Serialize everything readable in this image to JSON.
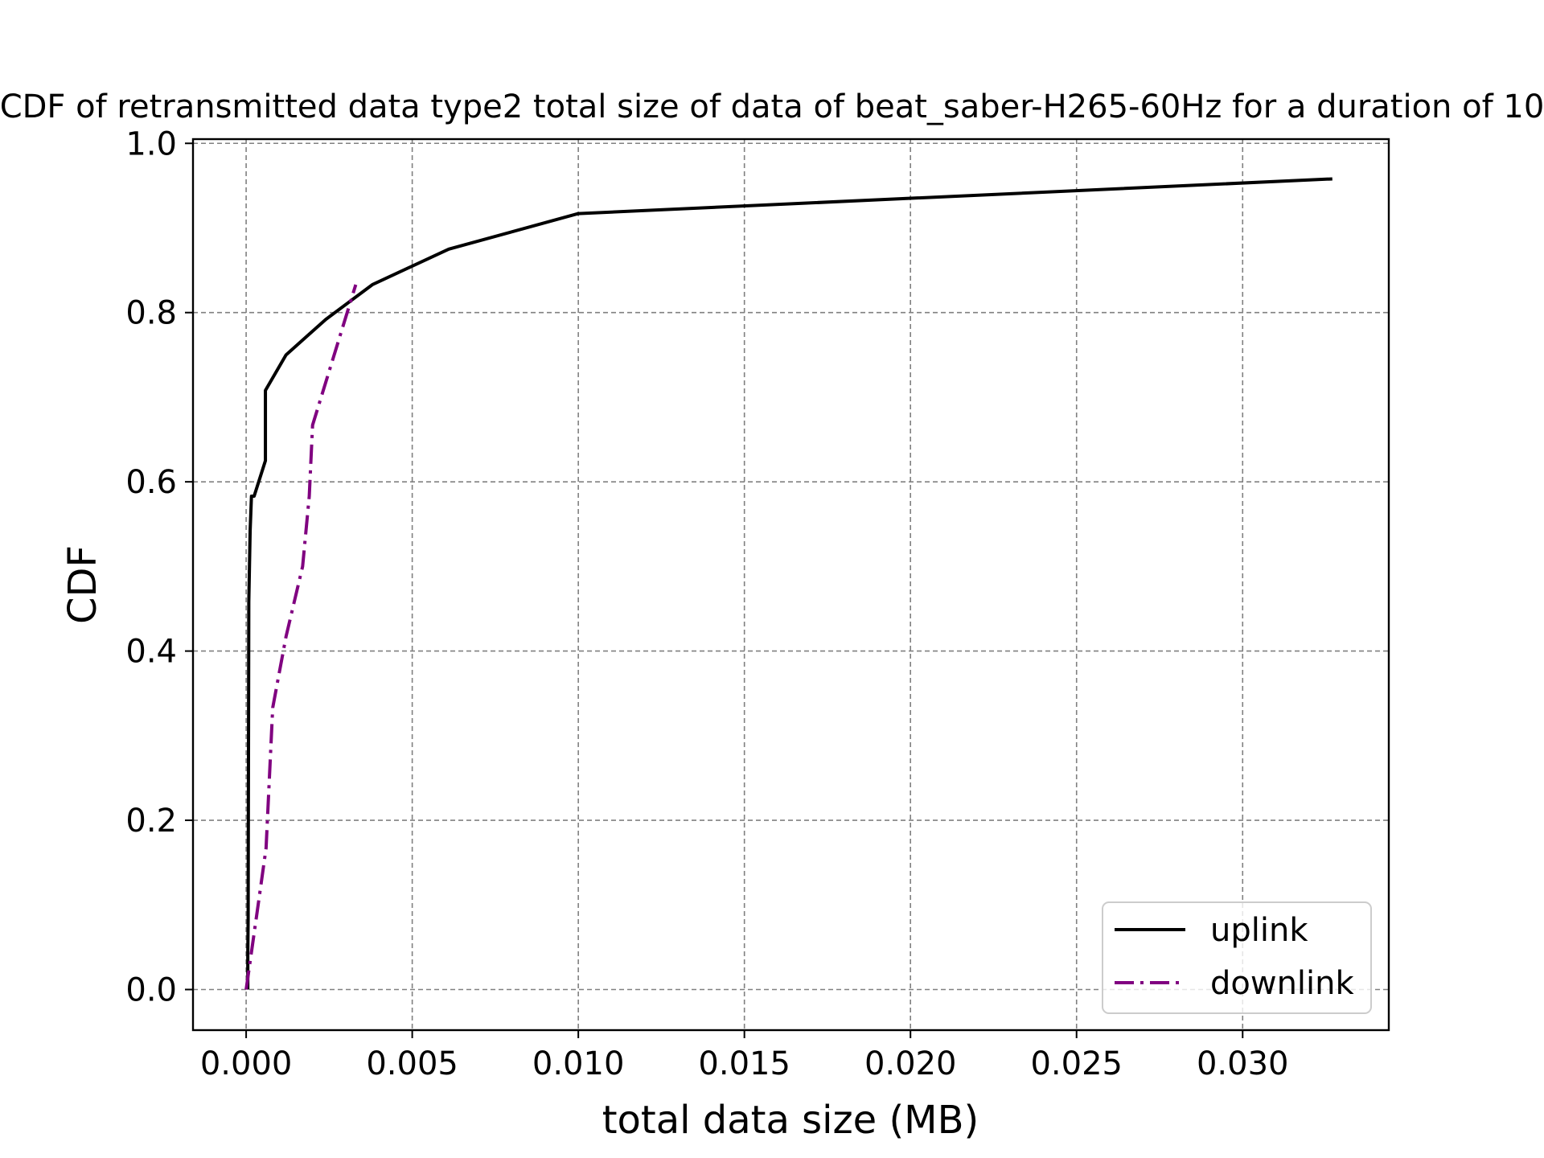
{
  "chart_data": {
    "type": "line",
    "title": "CDF of retransmitted data type2 total size of data of beat_saber-H265-60Hz for a duration of 10",
    "xlabel": "total data size (MB)",
    "ylabel": "CDF",
    "xlim": [
      -0.0016,
      0.0344
    ],
    "ylim": [
      -0.048,
      1.005
    ],
    "xticks": [
      0.0,
      0.005,
      0.01,
      0.015,
      0.02,
      0.025,
      0.03
    ],
    "xtick_labels": [
      "0.000",
      "0.005",
      "0.010",
      "0.015",
      "0.020",
      "0.025",
      "0.030"
    ],
    "yticks": [
      0.0,
      0.2,
      0.4,
      0.6,
      0.8,
      1.0
    ],
    "ytick_labels": [
      "0.0",
      "0.2",
      "0.4",
      "0.6",
      "0.8",
      "1.0"
    ],
    "grid": true,
    "legend_position": "lower right",
    "series": [
      {
        "name": "uplink",
        "color": "#000000",
        "style": "solid",
        "x": [
          5e-05,
          5e-05,
          6e-05,
          8e-05,
          0.0001,
          0.00012,
          0.00016,
          0.00024,
          0.00058,
          0.00058,
          0.0012,
          0.0024,
          0.0038,
          0.0061,
          0.01,
          0.0327
        ],
        "y": [
          0.0,
          0.042,
          0.083,
          0.458,
          0.5,
          0.542,
          0.583,
          0.583,
          0.625,
          0.708,
          0.75,
          0.792,
          0.833,
          0.875,
          0.917,
          0.958
        ]
      },
      {
        "name": "downlink",
        "color": "#800080",
        "style": "dashdot",
        "x": [
          0.0,
          0.0003,
          0.0006,
          0.0008,
          0.0012,
          0.0017,
          0.0019,
          0.002,
          0.0033
        ],
        "y": [
          0.0,
          0.083,
          0.167,
          0.333,
          0.417,
          0.5,
          0.583,
          0.667,
          0.833
        ]
      }
    ]
  }
}
